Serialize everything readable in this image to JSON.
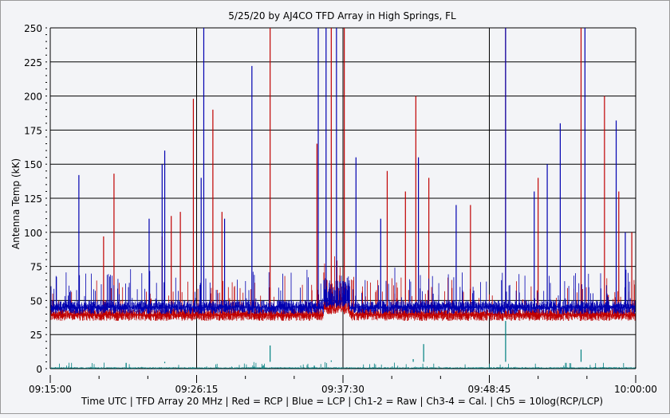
{
  "chart_data": {
    "type": "line",
    "title": "5/25/20  by  AJ4CO TFD Array  in  High Springs, FL",
    "ylabel": "Antenna Temp (kK)",
    "xlabel": "Time UTC | TFD Array 20 MHz | Red = RCP | Blue = LCP | Ch1-2 = Raw | Ch3-4 = Cal. | Ch5 = 10log(RCP/LCP)",
    "ylim": [
      0,
      250
    ],
    "yticks": [
      "0",
      "25",
      "50",
      "75",
      "100",
      "125",
      "150",
      "175",
      "200",
      "225",
      "250"
    ],
    "xlim_minutes": [
      0,
      45
    ],
    "xticks": [
      {
        "label": "09:15:00",
        "min": 0
      },
      {
        "label": "09:26:15",
        "min": 11.25
      },
      {
        "label": "09:37:30",
        "min": 22.5
      },
      {
        "label": "09:48:45",
        "min": 33.75
      },
      {
        "label": "10:00:00",
        "min": 45
      }
    ],
    "grid": true,
    "series": [
      {
        "name": "RCP",
        "color": "#c00000",
        "baseline": [
          35,
          44
        ],
        "spikes": [
          [
            4.1,
            97
          ],
          [
            4.9,
            143
          ],
          [
            8.6,
            97
          ],
          [
            9.3,
            112
          ],
          [
            10.0,
            115
          ],
          [
            11.0,
            198
          ],
          [
            12.5,
            190
          ],
          [
            13.2,
            115
          ],
          [
            16.9,
            250
          ],
          [
            20.5,
            165
          ],
          [
            21.6,
            250
          ],
          [
            22.6,
            250
          ],
          [
            25.9,
            145
          ],
          [
            27.3,
            130
          ],
          [
            28.1,
            200
          ],
          [
            29.1,
            140
          ],
          [
            32.3,
            120
          ],
          [
            35.0,
            250
          ],
          [
            37.5,
            140
          ],
          [
            40.8,
            250
          ],
          [
            42.6,
            200
          ],
          [
            43.7,
            130
          ],
          [
            44.7,
            100
          ]
        ]
      },
      {
        "name": "LCP",
        "color": "#0000b0",
        "baseline": [
          40,
          50
        ],
        "spikes": [
          [
            2.2,
            142
          ],
          [
            7.6,
            110
          ],
          [
            8.8,
            160
          ],
          [
            8.6,
            150
          ],
          [
            11.6,
            140
          ],
          [
            11.8,
            250
          ],
          [
            13.4,
            110
          ],
          [
            15.5,
            222
          ],
          [
            20.6,
            250
          ],
          [
            21.2,
            250
          ],
          [
            22.0,
            250
          ],
          [
            23.5,
            155
          ],
          [
            25.4,
            110
          ],
          [
            28.3,
            155
          ],
          [
            31.2,
            120
          ],
          [
            35.0,
            250
          ],
          [
            37.2,
            130
          ],
          [
            38.2,
            150
          ],
          [
            39.2,
            180
          ],
          [
            41.1,
            250
          ],
          [
            43.5,
            182
          ],
          [
            44.2,
            100
          ]
        ]
      },
      {
        "name": "10log(RCP/LCP)",
        "color": "#008080",
        "baseline": [
          0,
          1
        ],
        "spikes": [
          [
            8.8,
            4
          ],
          [
            16.9,
            17
          ],
          [
            21.6,
            6
          ],
          [
            27.9,
            7
          ],
          [
            28.7,
            18
          ],
          [
            35.0,
            35
          ],
          [
            40.8,
            14
          ]
        ]
      }
    ]
  }
}
